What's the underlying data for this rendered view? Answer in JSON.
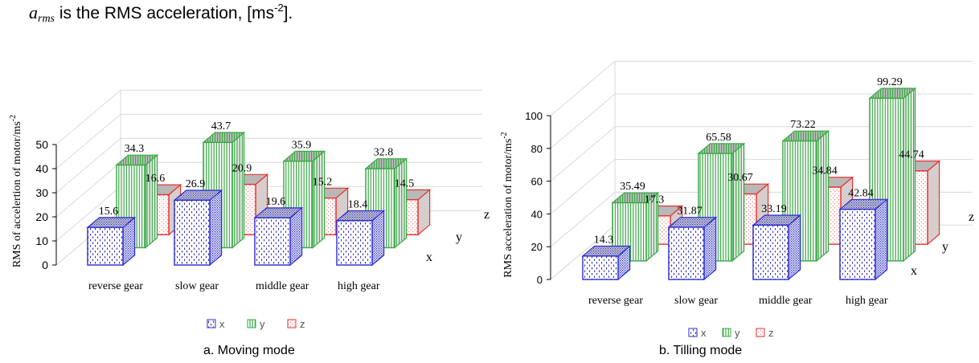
{
  "intro": {
    "symbol": "a",
    "symbol_subscript": "rms",
    "text_before_unit": " is the RMS acceleration, [ms",
    "unit_exponent": "-2",
    "text_after_unit": "]."
  },
  "colors": {
    "x": "#2b2bd4",
    "y": "#3aa845",
    "z": "#e83030",
    "grid": "#d9d9d9",
    "top_face": "#b8b8b8"
  },
  "chart_data": [
    {
      "type": "bar",
      "caption": "a. Moving mode",
      "ylabel": "RMS of accelertion of motor/ms",
      "ylabel_exponent": "-2",
      "ylim": [
        0,
        50
      ],
      "yticks": [
        "0",
        "10",
        "20",
        "30",
        "40",
        "50"
      ],
      "categories": [
        "reverse gear",
        "slow gear",
        "middle gear",
        "high gear"
      ],
      "depth_axis_labels": [
        "x",
        "y",
        "z"
      ],
      "series": [
        {
          "name": "x",
          "values": [
            15.6,
            26.9,
            19.6,
            18.4
          ],
          "value_labels": [
            "15.6",
            "26.9",
            "19.6",
            "18.4"
          ]
        },
        {
          "name": "y",
          "values": [
            34.3,
            43.7,
            35.9,
            32.8
          ],
          "value_labels": [
            "34.3",
            "43.7",
            "35.9",
            "32.8"
          ]
        },
        {
          "name": "z",
          "values": [
            16.6,
            20.9,
            15.2,
            14.5
          ],
          "value_labels": [
            "16.6",
            "20.9",
            "15.2",
            "14.5"
          ]
        }
      ],
      "legend": [
        "x",
        "y",
        "z"
      ],
      "legend_position": "bottom"
    },
    {
      "type": "bar",
      "caption": "b. Tilling mode",
      "ylabel": "RMS acceleration of motor/ms",
      "ylabel_exponent": "-2",
      "ylim": [
        0,
        100
      ],
      "yticks": [
        "0",
        "20",
        "40",
        "60",
        "80",
        "100"
      ],
      "categories": [
        "reverse gear",
        "slow gear",
        "middle gear",
        "high gear"
      ],
      "depth_axis_labels": [
        "x",
        "y",
        "z"
      ],
      "series": [
        {
          "name": "x",
          "values": [
            14.3,
            31.87,
            33.19,
            42.84
          ],
          "value_labels": [
            "14.3",
            "31.87",
            "33.19",
            "42.84"
          ]
        },
        {
          "name": "y",
          "values": [
            35.49,
            65.58,
            73.22,
            99.29
          ],
          "value_labels": [
            "35.49",
            "65.58",
            "73.22",
            "99.29"
          ]
        },
        {
          "name": "z",
          "values": [
            17.3,
            30.67,
            34.84,
            44.74
          ],
          "value_labels": [
            "17.3",
            "30.67",
            "34.84",
            "44.74"
          ]
        }
      ],
      "legend": [
        "x",
        "y",
        "z"
      ],
      "legend_position": "bottom"
    }
  ]
}
